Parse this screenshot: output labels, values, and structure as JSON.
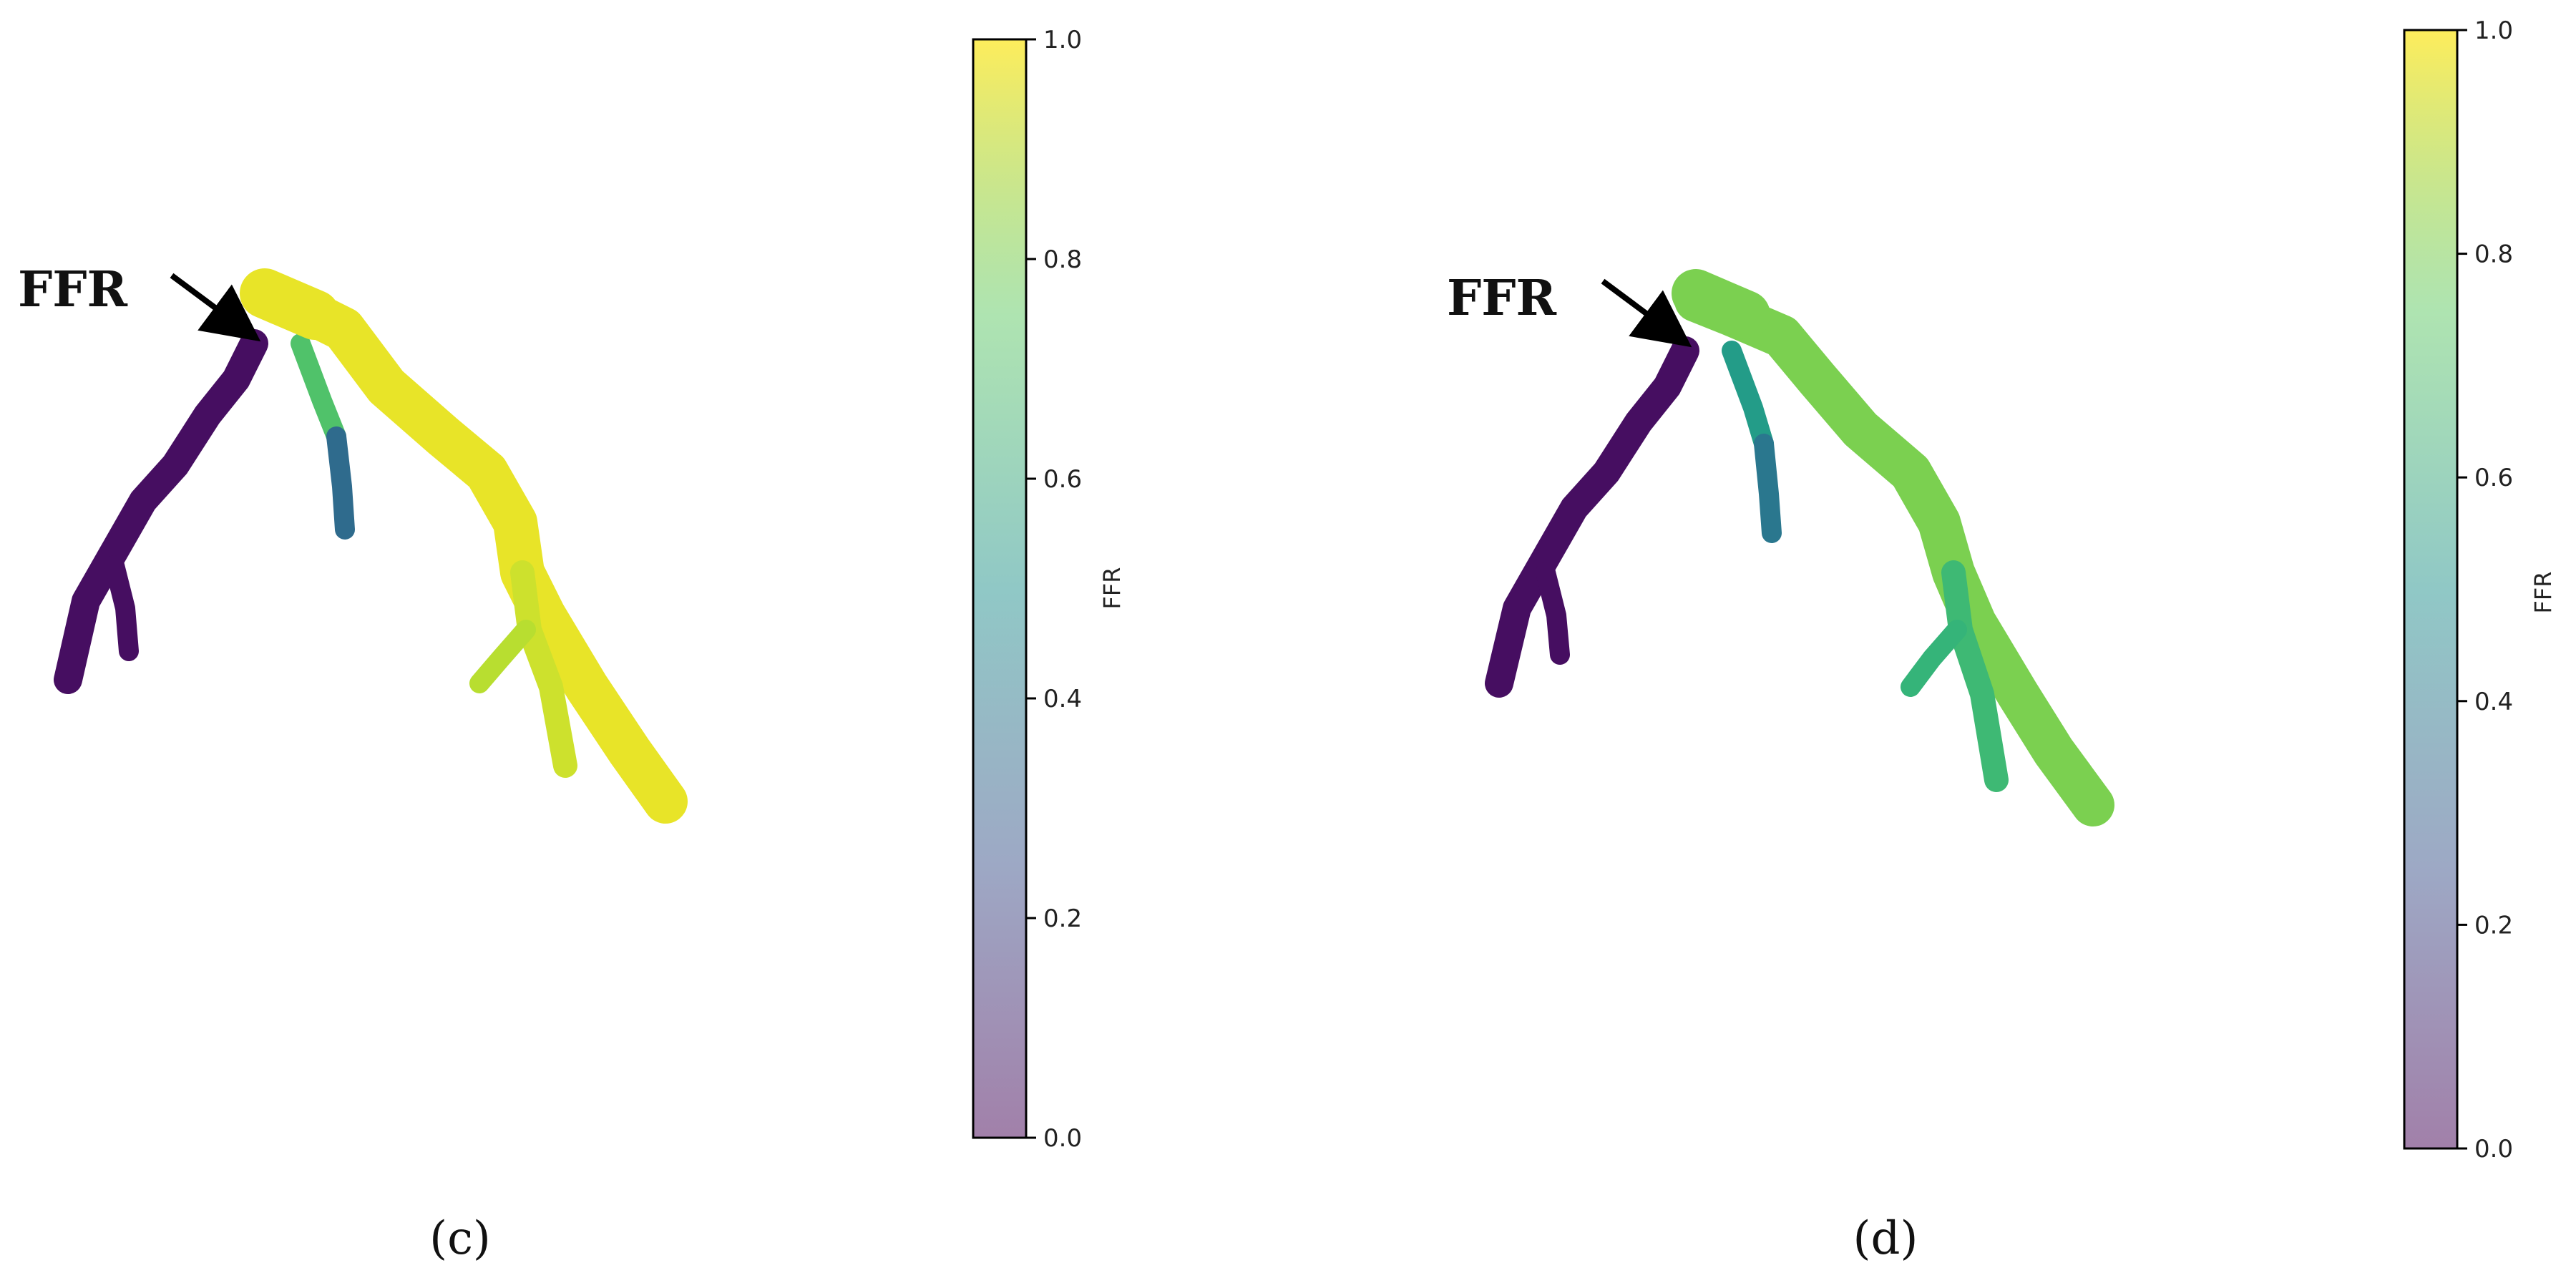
{
  "panels": [
    {
      "id": "c",
      "caption": "(c)",
      "arrow_label": "FFR",
      "colorbar": {
        "label": "FFR",
        "ticks": [
          "0.0",
          "0.2",
          "0.4",
          "0.6",
          "0.8",
          "1.0"
        ],
        "range": [
          0,
          1
        ],
        "colormap": "viridis"
      },
      "segments": {
        "left_branch": 0.05,
        "middle_branch_top": 0.72,
        "middle_branch_bottom": 0.35,
        "main_trunk": 0.97,
        "right_lower_branch": 0.93,
        "lower_small_branch": 0.9
      }
    },
    {
      "id": "d",
      "caption": "(d)",
      "arrow_label": "FFR",
      "colorbar": {
        "label": "FFR",
        "ticks": [
          "0.0",
          "0.2",
          "0.4",
          "0.6",
          "0.8",
          "1.0"
        ],
        "range": [
          0,
          1
        ],
        "colormap": "viridis"
      },
      "segments": {
        "left_branch": 0.05,
        "middle_branch_top": 0.55,
        "middle_branch_bottom": 0.4,
        "main_trunk": 0.8,
        "right_lower_branch": 0.68,
        "lower_small_branch": 0.66
      }
    }
  ],
  "colors": {
    "viridis_0": "#440154",
    "viridis_1": "#fde725"
  }
}
